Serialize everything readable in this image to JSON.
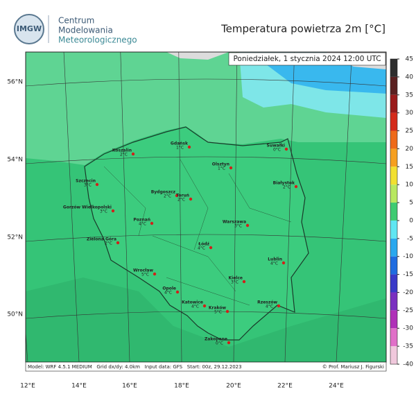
{
  "logo": {
    "badge": "IMGW",
    "lines": [
      "Centrum",
      "Modelowania",
      "Meteorologicznego"
    ]
  },
  "title": "Temperatura powietrza 2m [°C]",
  "valid_time": "Poniedziałek, 1 stycznia 2024 12:00 UTC",
  "lat_labels": [
    "56°N",
    "54°N",
    "52°N",
    "50°N"
  ],
  "lon_labels": [
    "12°E",
    "14°E",
    "16°E",
    "18°E",
    "20°E",
    "22°E",
    "24°E"
  ],
  "colorbar": {
    "ticks": [
      45,
      40,
      35,
      30,
      25,
      20,
      15,
      10,
      5,
      0,
      -5,
      -10,
      -15,
      -20,
      -25,
      -30,
      -35,
      -40
    ],
    "colors": [
      "#2e2e2e",
      "#5a2020",
      "#9a1a1a",
      "#d42a1a",
      "#ee6a1a",
      "#f6a020",
      "#f2e030",
      "#b8e860",
      "#3fcb72",
      "#60e6f2",
      "#2aa8ee",
      "#1f6ce0",
      "#3a3ac8",
      "#7a30c0",
      "#b030b8",
      "#e070c8",
      "#f0c8dc"
    ]
  },
  "cities": [
    {
      "name": "Koszalin",
      "temp": "2°C"
    },
    {
      "name": "Gdańsk",
      "temp": "1°C"
    },
    {
      "name": "Suwałki",
      "temp": "0°C"
    },
    {
      "name": "Olsztyn",
      "temp": "1°C"
    },
    {
      "name": "Szczecin",
      "temp": "3°C"
    },
    {
      "name": "Bydgoszcz",
      "temp": "2°C"
    },
    {
      "name": "Toruń",
      "temp": "2°C"
    },
    {
      "name": "Białystok",
      "temp": "2°C"
    },
    {
      "name": "Gorzów Wielkopolski",
      "temp": "3°C"
    },
    {
      "name": "Poznań",
      "temp": "4°C"
    },
    {
      "name": "Warszawa",
      "temp": "3°C"
    },
    {
      "name": "Zielona Góra",
      "temp": "2°C"
    },
    {
      "name": "Łódź",
      "temp": "4°C"
    },
    {
      "name": "Lublin",
      "temp": "4°C"
    },
    {
      "name": "Wrocław",
      "temp": "5°C"
    },
    {
      "name": "Kielce",
      "temp": "3°C"
    },
    {
      "name": "Opole",
      "temp": "4°C"
    },
    {
      "name": "Katowice",
      "temp": "4°C"
    },
    {
      "name": "Kraków",
      "temp": "5°C"
    },
    {
      "name": "Rzeszów",
      "temp": "4°C"
    },
    {
      "name": "Zakopane",
      "temp": "0°C"
    }
  ],
  "footer": {
    "model": "Model: WRF 4.5.1 MEDIUM   Grid dx/dy: 4.0km   Input data: GFS   Start: 00z, 29.12.2023",
    "credit": "© Prof. Mariusz J. Figurski"
  }
}
